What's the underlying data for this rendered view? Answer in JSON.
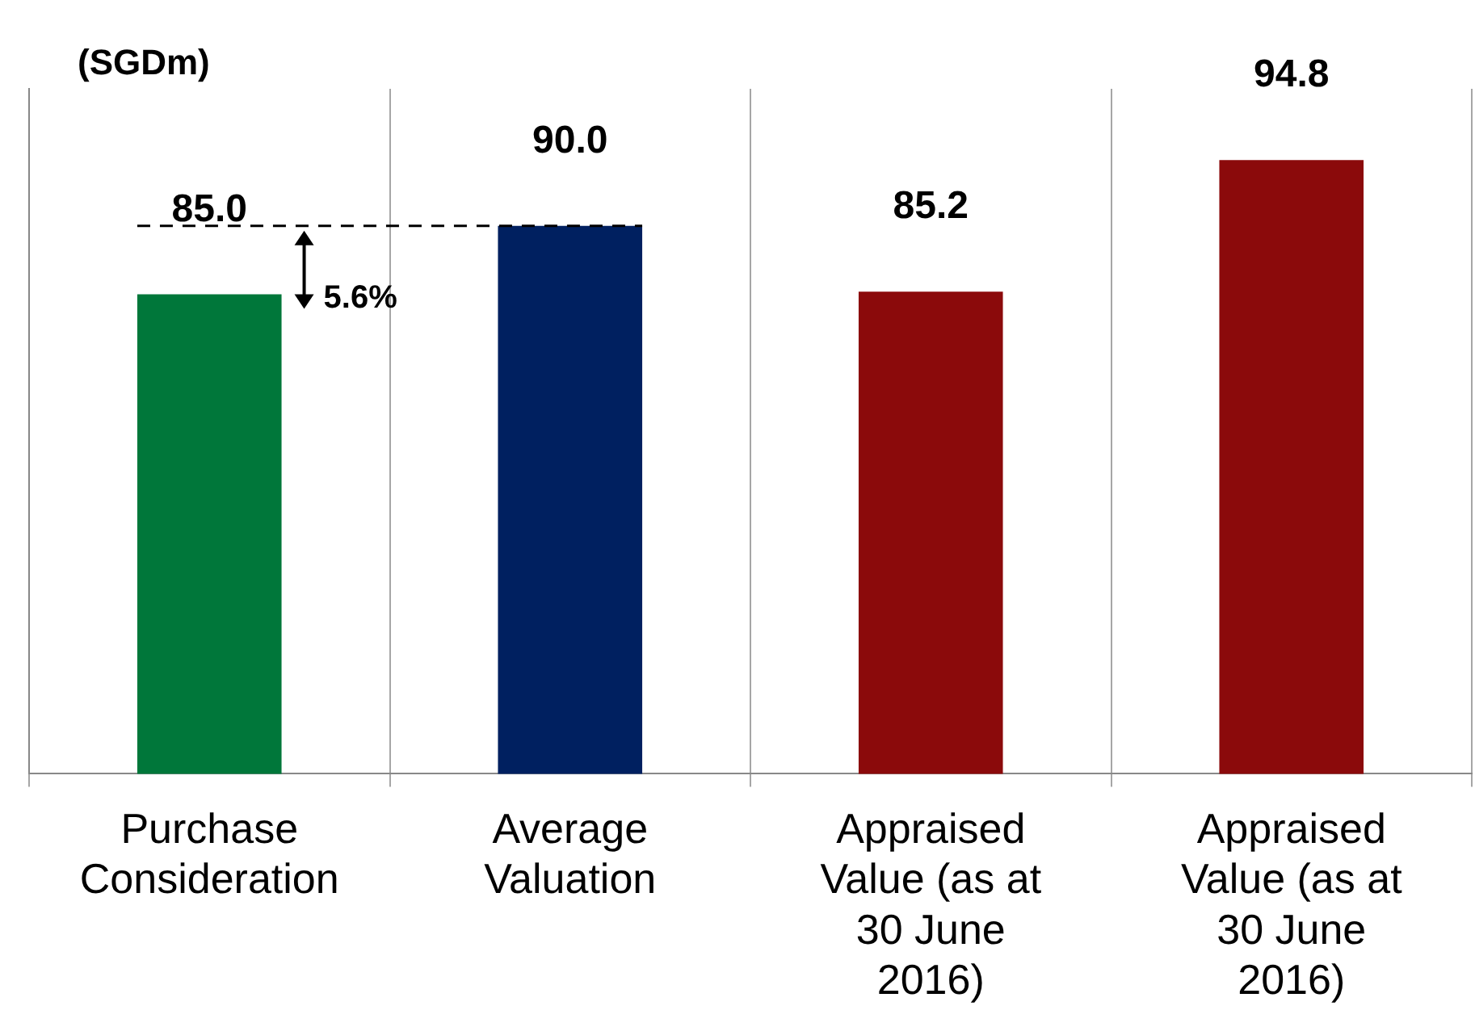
{
  "chart_data": {
    "type": "bar",
    "ylabel": "(SGDm)",
    "categories": [
      "Purchase Consideration",
      "Average Valuation",
      "Appraised Value (as at 30 June 2016)",
      "Appraised Value (as at 30 June 2016)"
    ],
    "values": [
      85.0,
      90.0,
      85.2,
      94.8
    ],
    "colors": [
      "#00773a",
      "#002060",
      "#8b0a0b",
      "#8b0a0b"
    ],
    "ylim": [
      50,
      100
    ],
    "value_labels": [
      "85.0",
      "90.0",
      "85.2",
      "94.8"
    ],
    "grid": "x",
    "ref_lines": [
      {
        "axis": "y",
        "value": 90,
        "line_style": "dashed",
        "color": "#000000"
      }
    ],
    "annotations": [
      "5.6%"
    ]
  }
}
